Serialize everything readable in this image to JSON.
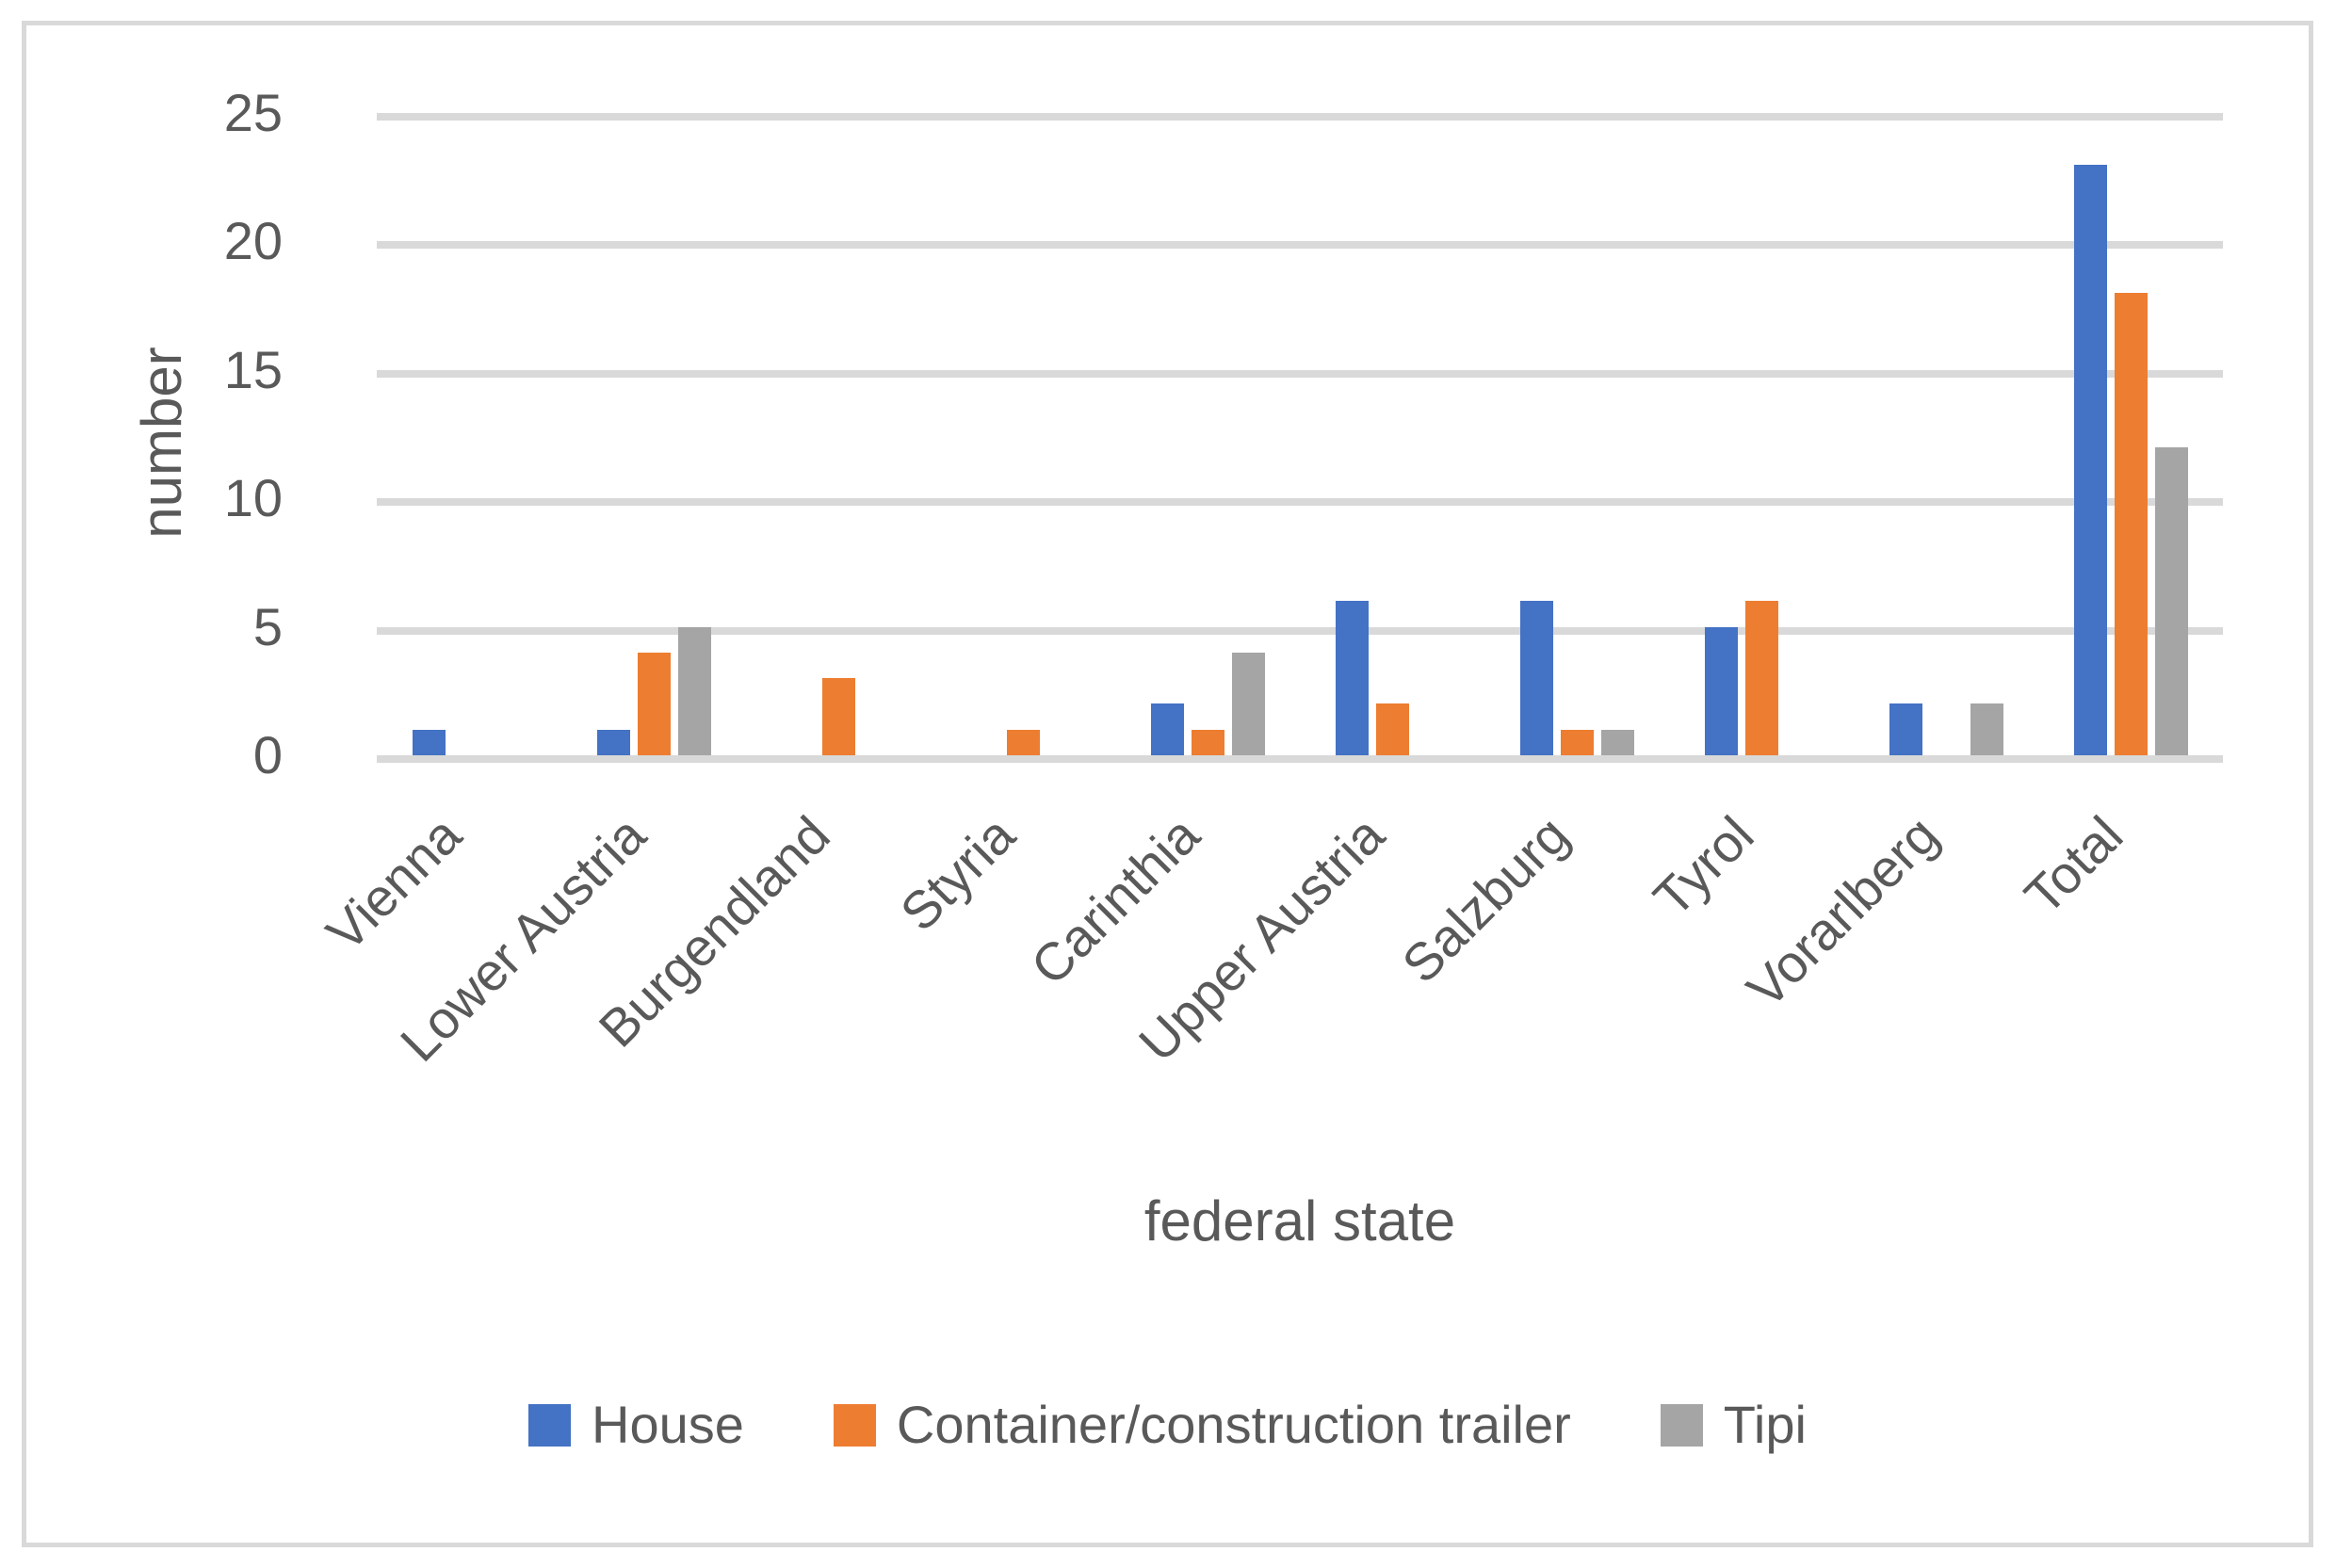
{
  "chart_data": {
    "type": "bar",
    "title": "",
    "xlabel": "federal state",
    "ylabel": "number",
    "categories": [
      "Vienna",
      "Lower Austria",
      "Burgendland",
      "Styria",
      "Carinthia",
      "Upper Austria",
      "Salzburg",
      "Tyrol",
      "Vorarlberg",
      "Total"
    ],
    "series": [
      {
        "name": "House",
        "color": "#4472C4",
        "values": [
          1,
          1,
          0,
          0,
          2,
          6,
          6,
          5,
          2,
          23
        ]
      },
      {
        "name": "Container/construction trailer",
        "color": "#ED7D31",
        "values": [
          0,
          4,
          3,
          1,
          1,
          2,
          1,
          6,
          0,
          18
        ]
      },
      {
        "name": "Tipi",
        "color": "#A5A5A5",
        "values": [
          0,
          5,
          0,
          0,
          4,
          0,
          1,
          0,
          2,
          12
        ]
      }
    ],
    "yticks": [
      0,
      5,
      10,
      15,
      20,
      25
    ],
    "ylim": [
      0,
      25
    ],
    "grid": true,
    "legend_position": "bottom",
    "colors": {
      "text": "#595959",
      "gridline": "#D9D9D9",
      "border": "#D9D9D9",
      "background": "#FFFFFF"
    }
  }
}
